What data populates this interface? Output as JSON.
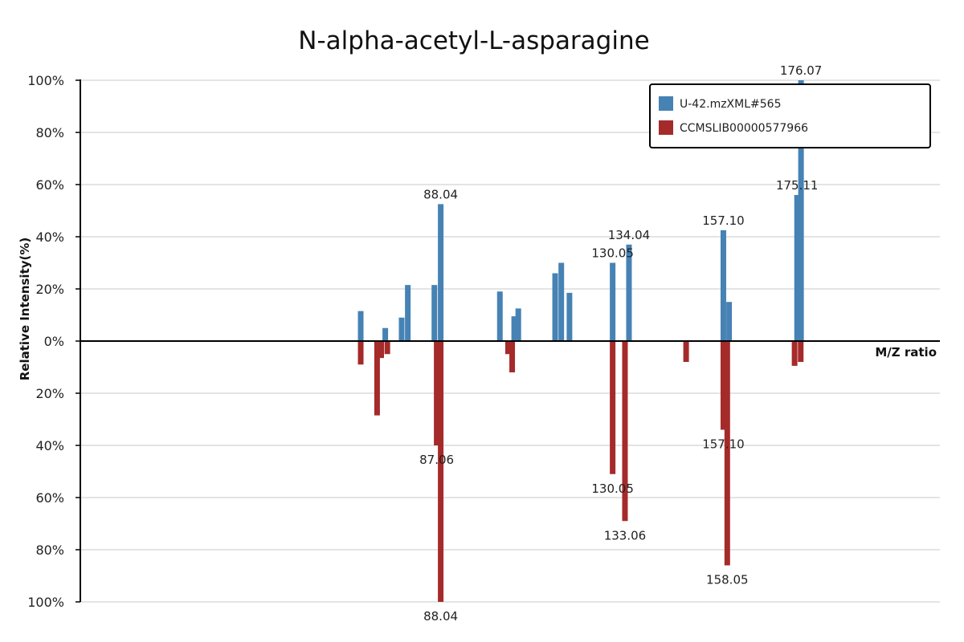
{
  "chart_data": {
    "type": "bar",
    "title": "N-alpha-acetyl-L-asparagine",
    "xlabel": "M/Z ratio",
    "ylabel": "Relative Intensity(%)",
    "xlim": [
      0,
      210
    ],
    "ylim": [
      -100,
      100
    ],
    "yticks": [
      "100%",
      "80%",
      "60%",
      "40%",
      "20%",
      "0%",
      "20%",
      "40%",
      "60%",
      "80%",
      "100%"
    ],
    "grid": true,
    "legend_position": "top-right",
    "series": [
      {
        "name": "U-42.mzXML#565",
        "color": "#4682b4",
        "direction": "up",
        "peaks": [
          {
            "mz": 68.5,
            "intensity": 11.5
          },
          {
            "mz": 74.5,
            "intensity": 5
          },
          {
            "mz": 78.5,
            "intensity": 9
          },
          {
            "mz": 80.0,
            "intensity": 21.5
          },
          {
            "mz": 86.5,
            "intensity": 21.5
          },
          {
            "mz": 88.04,
            "intensity": 52.5,
            "label": "88.04"
          },
          {
            "mz": 102.5,
            "intensity": 19
          },
          {
            "mz": 106.0,
            "intensity": 9.5
          },
          {
            "mz": 107.0,
            "intensity": 12.5
          },
          {
            "mz": 116.0,
            "intensity": 26
          },
          {
            "mz": 117.5,
            "intensity": 30
          },
          {
            "mz": 130.05,
            "intensity": 30,
            "label": "130.05"
          },
          {
            "mz": 119.5,
            "intensity": 18.5
          },
          {
            "mz": 134.04,
            "intensity": 37,
            "label": "134.04"
          },
          {
            "mz": 157.1,
            "intensity": 42.5,
            "label": "157.10"
          },
          {
            "mz": 158.5,
            "intensity": 15
          },
          {
            "mz": 175.11,
            "intensity": 56,
            "label": "175.11"
          },
          {
            "mz": 176.07,
            "intensity": 100,
            "label": "176.07"
          }
        ]
      },
      {
        "name": "CCMSLIB00000577966",
        "color": "#a52a2a",
        "direction": "down",
        "peaks": [
          {
            "mz": 68.5,
            "intensity": 9
          },
          {
            "mz": 72.5,
            "intensity": 28.5
          },
          {
            "mz": 73.5,
            "intensity": 6.5
          },
          {
            "mz": 75.0,
            "intensity": 5
          },
          {
            "mz": 87.06,
            "intensity": 40,
            "label": "87.06"
          },
          {
            "mz": 88.04,
            "intensity": 100,
            "label": "88.04"
          },
          {
            "mz": 104.5,
            "intensity": 5
          },
          {
            "mz": 105.5,
            "intensity": 12
          },
          {
            "mz": 130.05,
            "intensity": 51,
            "label": "130.05"
          },
          {
            "mz": 133.06,
            "intensity": 69,
            "label": "133.06"
          },
          {
            "mz": 148.0,
            "intensity": 8
          },
          {
            "mz": 157.1,
            "intensity": 34,
            "label": "157.10"
          },
          {
            "mz": 158.05,
            "intensity": 86,
            "label": "158.05"
          },
          {
            "mz": 174.5,
            "intensity": 9.5
          },
          {
            "mz": 176.0,
            "intensity": 8
          }
        ]
      }
    ]
  }
}
